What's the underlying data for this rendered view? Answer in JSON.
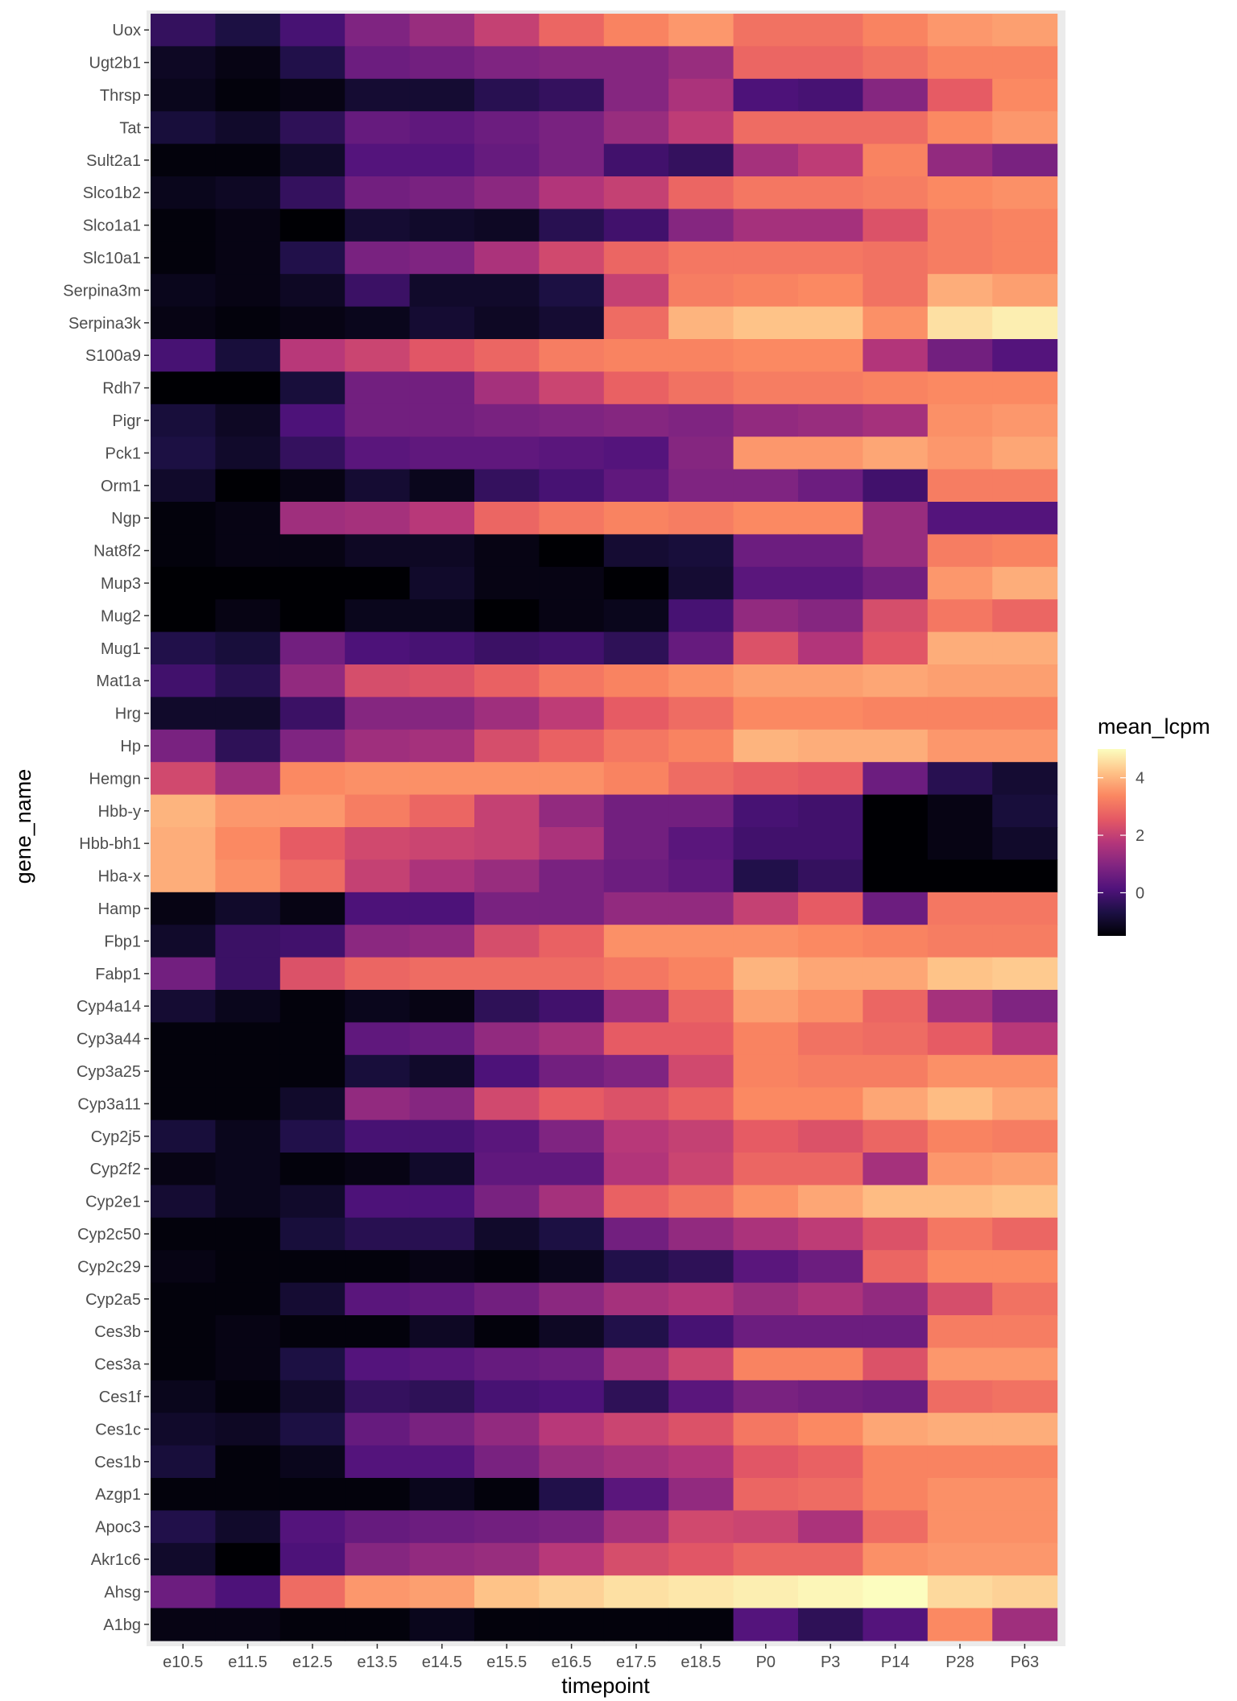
{
  "chart_data": {
    "type": "heatmap",
    "xlabel": "timepoint",
    "ylabel": "gene_name",
    "x": [
      "e10.5",
      "e11.5",
      "e12.5",
      "e13.5",
      "e14.5",
      "e15.5",
      "e16.5",
      "e17.5",
      "e18.5",
      "P0",
      "P3",
      "P14",
      "P28",
      "P63"
    ],
    "y": [
      "Uox",
      "Ugt2b1",
      "Thrsp",
      "Tat",
      "Sult2a1",
      "Slco1b2",
      "Slco1a1",
      "Slc10a1",
      "Serpina3m",
      "Serpina3k",
      "S100a9",
      "Rdh7",
      "Pigr",
      "Pck1",
      "Orm1",
      "Ngp",
      "Nat8f2",
      "Mup3",
      "Mug2",
      "Mug1",
      "Mat1a",
      "Hrg",
      "Hp",
      "Hemgn",
      "Hbb-y",
      "Hbb-bh1",
      "Hba-x",
      "Hamp",
      "Fbp1",
      "Fabp1",
      "Cyp4a14",
      "Cyp3a44",
      "Cyp3a25",
      "Cyp3a11",
      "Cyp2j5",
      "Cyp2f2",
      "Cyp2e1",
      "Cyp2c50",
      "Cyp2c29",
      "Cyp2a5",
      "Ces3b",
      "Ces3a",
      "Ces1f",
      "Ces1c",
      "Ces1b",
      "Azgp1",
      "Apoc3",
      "Akr1c6",
      "Ahsg",
      "A1bg"
    ],
    "values": [
      [
        -0.3,
        -0.7,
        0.0,
        0.9,
        1.3,
        2.0,
        2.8,
        3.3,
        3.6,
        3.0,
        3.0,
        3.3,
        3.6,
        3.7
      ],
      [
        -1.1,
        -1.3,
        -0.6,
        0.6,
        0.7,
        0.9,
        1.0,
        1.0,
        1.3,
        2.8,
        2.8,
        3.0,
        3.3,
        3.3
      ],
      [
        -1.2,
        -1.4,
        -1.3,
        -0.9,
        -0.9,
        -0.5,
        -0.3,
        1.0,
        1.6,
        0.1,
        0.0,
        1.0,
        2.6,
        3.4
      ],
      [
        -0.8,
        -1.0,
        -0.4,
        0.5,
        0.4,
        0.6,
        0.8,
        1.3,
        1.9,
        2.9,
        2.9,
        2.9,
        3.4,
        3.6
      ],
      [
        -1.4,
        -1.4,
        -1.0,
        0.2,
        0.2,
        0.5,
        0.8,
        -0.1,
        -0.3,
        1.5,
        1.9,
        3.3,
        1.2,
        0.8
      ],
      [
        -1.2,
        -1.1,
        -0.3,
        0.7,
        0.8,
        1.1,
        1.7,
        2.0,
        2.8,
        3.1,
        3.1,
        3.2,
        3.4,
        3.5
      ],
      [
        -1.4,
        -1.3,
        -1.5,
        -0.9,
        -1.0,
        -1.1,
        -0.5,
        -0.1,
        1.0,
        1.5,
        1.5,
        2.4,
        3.2,
        3.3
      ],
      [
        -1.4,
        -1.3,
        -0.6,
        0.8,
        0.9,
        1.6,
        2.2,
        2.8,
        3.1,
        3.1,
        3.1,
        3.0,
        3.2,
        3.3
      ],
      [
        -1.2,
        -1.3,
        -1.1,
        -0.2,
        -1.0,
        -1.0,
        -0.7,
        2.0,
        3.2,
        3.3,
        3.4,
        3.0,
        3.9,
        3.7
      ],
      [
        -1.3,
        -1.4,
        -1.3,
        -1.2,
        -0.9,
        -1.1,
        -0.9,
        2.9,
        4.0,
        4.2,
        4.2,
        3.5,
        4.6,
        4.8
      ],
      [
        0.0,
        -0.8,
        1.8,
        2.1,
        2.5,
        2.8,
        3.2,
        3.3,
        3.3,
        3.4,
        3.4,
        1.7,
        0.7,
        0.2
      ],
      [
        -1.5,
        -1.5,
        -0.8,
        0.7,
        0.7,
        1.5,
        2.1,
        2.7,
        3.0,
        3.2,
        3.2,
        3.3,
        3.4,
        3.4
      ],
      [
        -0.8,
        -1.1,
        0.1,
        0.7,
        0.7,
        0.8,
        0.9,
        1.0,
        0.9,
        1.2,
        1.3,
        1.5,
        3.5,
        3.6
      ],
      [
        -0.7,
        -1.0,
        -0.3,
        0.3,
        0.4,
        0.4,
        0.3,
        0.2,
        1.0,
        3.6,
        3.6,
        3.8,
        3.6,
        3.8
      ],
      [
        -1.0,
        -1.5,
        -1.3,
        -0.9,
        -1.2,
        -0.3,
        0.0,
        0.4,
        0.9,
        0.9,
        0.6,
        -0.1,
        3.2,
        3.2
      ],
      [
        -1.4,
        -1.3,
        1.4,
        1.5,
        1.8,
        2.8,
        3.1,
        3.3,
        3.2,
        3.4,
        3.4,
        1.3,
        0.2,
        0.2
      ],
      [
        -1.4,
        -1.3,
        -1.3,
        -1.1,
        -1.1,
        -1.3,
        -1.5,
        -0.9,
        -0.8,
        0.6,
        0.6,
        1.3,
        3.2,
        3.3
      ],
      [
        -1.5,
        -1.5,
        -1.5,
        -1.5,
        -1.0,
        -1.3,
        -1.3,
        -1.5,
        -0.9,
        0.3,
        0.3,
        0.7,
        3.6,
        3.9
      ],
      [
        -1.5,
        -1.3,
        -1.5,
        -1.2,
        -1.2,
        -1.5,
        -1.3,
        -1.2,
        0.0,
        1.2,
        1.0,
        2.3,
        3.1,
        2.8
      ],
      [
        -0.6,
        -0.8,
        0.7,
        0.1,
        0.0,
        -0.2,
        -0.1,
        -0.4,
        0.5,
        2.4,
        1.7,
        2.5,
        3.9,
        3.9
      ],
      [
        -0.1,
        -0.5,
        1.2,
        2.3,
        2.4,
        2.7,
        3.1,
        3.3,
        3.5,
        3.7,
        3.7,
        3.8,
        3.7,
        3.7
      ],
      [
        -1.0,
        -1.0,
        -0.2,
        1.0,
        1.0,
        1.4,
        1.9,
        2.6,
        2.9,
        3.4,
        3.4,
        3.3,
        3.3,
        3.3
      ],
      [
        0.8,
        -0.4,
        0.9,
        1.4,
        1.5,
        2.3,
        2.7,
        3.1,
        3.3,
        4.0,
        3.9,
        3.9,
        3.6,
        3.6
      ],
      [
        2.2,
        1.4,
        3.4,
        3.5,
        3.5,
        3.5,
        3.5,
        3.3,
        2.9,
        2.7,
        2.6,
        0.6,
        -0.5,
        -0.9
      ],
      [
        4.0,
        3.6,
        3.6,
        3.2,
        2.8,
        2.0,
        1.2,
        0.7,
        0.7,
        0.0,
        -0.1,
        -1.5,
        -1.3,
        -0.8
      ],
      [
        3.9,
        3.4,
        2.6,
        2.2,
        2.1,
        2.0,
        1.6,
        0.7,
        0.3,
        -0.1,
        -0.1,
        -1.5,
        -1.3,
        -1.0
      ],
      [
        3.9,
        3.5,
        2.9,
        2.0,
        1.6,
        1.3,
        0.8,
        0.6,
        0.4,
        -0.6,
        -0.3,
        -1.5,
        -1.5,
        -1.5
      ],
      [
        -1.3,
        -1.0,
        -1.3,
        0.1,
        0.1,
        0.8,
        0.8,
        1.2,
        1.2,
        2.0,
        2.6,
        0.6,
        3.1,
        3.1
      ],
      [
        -1.0,
        -0.2,
        -0.1,
        1.1,
        1.2,
        2.3,
        2.7,
        3.5,
        3.5,
        3.5,
        3.4,
        3.3,
        3.2,
        3.2
      ],
      [
        0.7,
        -0.2,
        2.4,
        2.8,
        2.9,
        2.9,
        2.9,
        3.1,
        3.3,
        4.0,
        3.8,
        3.8,
        4.2,
        4.3
      ],
      [
        -0.9,
        -1.2,
        -1.4,
        -1.2,
        -1.3,
        -0.4,
        -0.1,
        1.4,
        2.8,
        3.7,
        3.5,
        2.8,
        1.5,
        0.9
      ],
      [
        -1.4,
        -1.4,
        -1.4,
        0.4,
        0.5,
        1.2,
        1.5,
        2.6,
        2.6,
        3.3,
        3.0,
        2.9,
        2.6,
        1.8
      ],
      [
        -1.4,
        -1.4,
        -1.4,
        -0.8,
        -1.0,
        0.1,
        0.7,
        0.9,
        2.2,
        3.3,
        3.2,
        3.2,
        3.5,
        3.5
      ],
      [
        -1.4,
        -1.4,
        -1.0,
        1.2,
        1.0,
        2.2,
        2.6,
        2.4,
        2.7,
        3.4,
        3.4,
        3.8,
        4.1,
        3.8
      ],
      [
        -0.8,
        -1.2,
        -0.6,
        0.0,
        0.0,
        0.3,
        0.9,
        1.8,
        2.0,
        2.6,
        2.4,
        2.8,
        3.3,
        3.2
      ],
      [
        -1.3,
        -1.2,
        -1.4,
        -1.3,
        -1.0,
        0.4,
        0.4,
        1.7,
        2.1,
        2.8,
        2.8,
        1.5,
        3.6,
        3.7
      ],
      [
        -0.9,
        -1.2,
        -1.0,
        0.1,
        0.1,
        0.8,
        1.5,
        2.7,
        3.0,
        3.5,
        3.8,
        4.1,
        4.1,
        4.2
      ],
      [
        -1.4,
        -1.4,
        -0.8,
        -0.5,
        -0.5,
        -1.0,
        -0.7,
        0.7,
        1.2,
        1.6,
        1.9,
        2.4,
        3.1,
        2.8
      ],
      [
        -1.3,
        -1.4,
        -1.4,
        -1.4,
        -1.3,
        -1.4,
        -1.2,
        -0.6,
        -0.4,
        0.3,
        0.6,
        2.8,
        3.4,
        3.4
      ],
      [
        -1.4,
        -1.4,
        -0.9,
        0.3,
        0.4,
        0.7,
        1.1,
        1.5,
        1.7,
        1.3,
        1.6,
        1.2,
        2.3,
        3.0
      ],
      [
        -1.4,
        -1.3,
        -1.4,
        -1.4,
        -1.1,
        -1.4,
        -1.1,
        -0.6,
        0.0,
        0.6,
        0.6,
        0.6,
        3.2,
        3.2
      ],
      [
        -1.4,
        -1.3,
        -0.7,
        0.2,
        0.3,
        0.5,
        0.6,
        1.5,
        2.1,
        3.3,
        3.3,
        2.4,
        3.6,
        3.6
      ],
      [
        -1.2,
        -1.4,
        -1.0,
        -0.3,
        -0.4,
        0.0,
        0.1,
        -0.4,
        0.3,
        0.8,
        0.7,
        0.6,
        2.9,
        3.0
      ],
      [
        -1.0,
        -1.1,
        -0.7,
        0.5,
        0.8,
        1.2,
        1.8,
        2.1,
        2.4,
        3.1,
        3.4,
        3.8,
        3.9,
        3.9
      ],
      [
        -0.8,
        -1.4,
        -1.2,
        0.2,
        0.2,
        0.8,
        1.3,
        1.5,
        1.7,
        2.5,
        2.7,
        3.3,
        3.3,
        3.3
      ],
      [
        -1.4,
        -1.4,
        -1.4,
        -1.4,
        -1.2,
        -1.4,
        -0.6,
        0.3,
        1.2,
        2.8,
        2.9,
        3.3,
        3.5,
        3.5
      ],
      [
        -0.6,
        -1.0,
        0.2,
        0.5,
        0.6,
        0.7,
        0.8,
        1.5,
        2.2,
        2.1,
        1.6,
        2.9,
        3.5,
        3.5
      ],
      [
        -1.0,
        -1.5,
        0.1,
        1.0,
        1.2,
        1.3,
        1.8,
        2.3,
        2.5,
        2.8,
        2.8,
        3.5,
        3.6,
        3.6
      ],
      [
        0.6,
        0.1,
        2.9,
        3.6,
        3.7,
        4.2,
        4.4,
        4.6,
        4.7,
        4.8,
        4.9,
        5.0,
        4.5,
        4.4
      ],
      [
        -1.3,
        -1.3,
        -1.4,
        -1.4,
        -1.2,
        -1.4,
        -1.4,
        -1.4,
        -1.4,
        0.2,
        -0.4,
        0.2,
        3.4,
        1.4
      ]
    ],
    "legend": {
      "title": "mean_lcpm",
      "ticks": [
        0,
        2,
        4
      ],
      "range": [
        -1.5,
        5.0
      ],
      "position": "right"
    },
    "colorscale": "magma",
    "grid": true
  }
}
